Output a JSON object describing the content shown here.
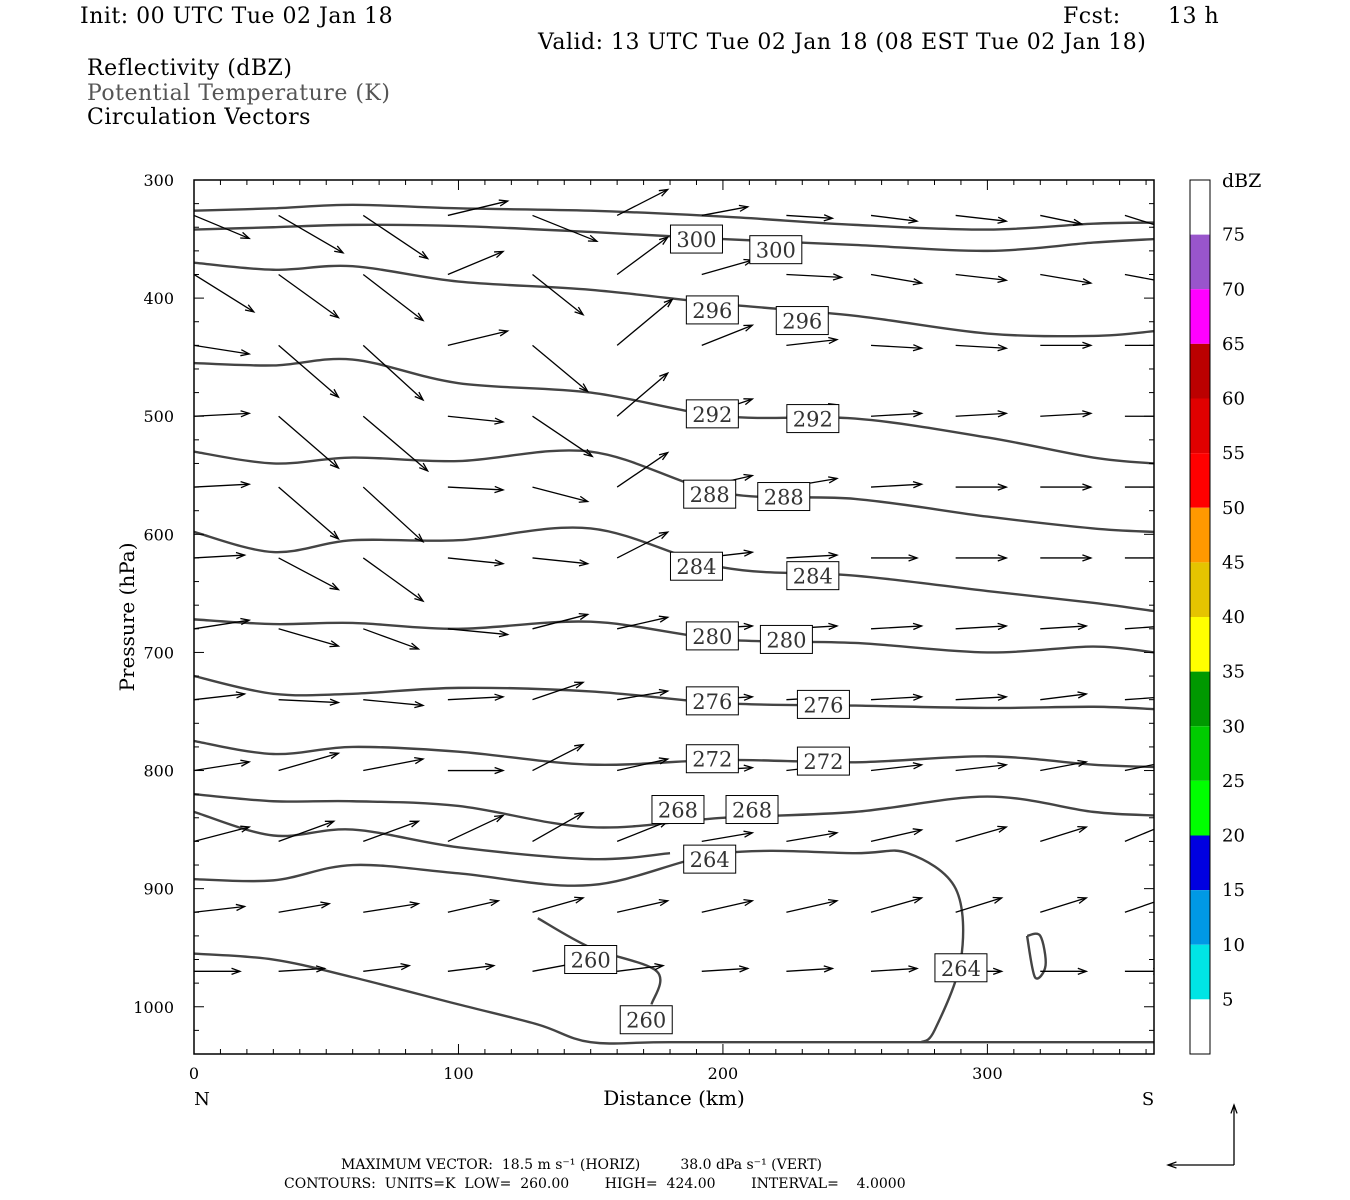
{
  "header": {
    "init": "Init: 00 UTC Tue 02 Jan 18",
    "fcst_label": "Fcst:",
    "fcst_value": "13 h",
    "valid": "Valid: 13 UTC Tue 02 Jan 18 (08 EST Tue 02 Jan 18)",
    "field1": "Reflectivity (dBZ)",
    "field2": "Potential Temperature (K)",
    "field3": "Circulation Vectors"
  },
  "colors": {
    "field2_text": "#555555",
    "contour": "#444444",
    "vector": "#000000",
    "colorbar": [
      "#ffffff",
      "#00e5e5",
      "#0099e5",
      "#0000e0",
      "#00ff00",
      "#00cc00",
      "#009900",
      "#ffff00",
      "#e5c400",
      "#ff9900",
      "#ff0000",
      "#e00000",
      "#bb0000",
      "#ff00ff",
      "#9955cc",
      "#ffffff"
    ]
  },
  "footer": {
    "line1": "MAXIMUM VECTOR:  18.5 m s⁻¹ (HORIZ)         38.0 dPa s⁻¹ (VERT)",
    "line2": "CONTOURS:  UNITS=K  LOW=  260.00        HIGH=  424.00        INTERVAL=    4.0000"
  },
  "chart_data": {
    "type": "contour",
    "xlabel": "Distance (km)",
    "ylabel": "Pressure (hPa)",
    "x_left_label": "N",
    "x_right_label": "S",
    "xlim": [
      0,
      363
    ],
    "ylim": [
      300,
      1040
    ],
    "xticks": [
      0,
      100,
      200,
      300
    ],
    "yticks": [
      300,
      400,
      500,
      600,
      700,
      800,
      900,
      1000
    ],
    "colorbar": {
      "title": "dBZ",
      "levels": [
        5,
        10,
        15,
        20,
        25,
        30,
        35,
        40,
        45,
        50,
        55,
        60,
        65,
        70,
        75
      ]
    },
    "contour_lines": [
      {
        "value": 300,
        "points": [
          [
            0,
            326
          ],
          [
            30,
            324
          ],
          [
            60,
            321
          ],
          [
            100,
            324
          ],
          [
            150,
            326
          ],
          [
            200,
            331
          ],
          [
            250,
            338
          ],
          [
            300,
            342
          ],
          [
            340,
            337
          ],
          [
            363,
            336
          ]
        ],
        "labels": [
          [
            190,
            350
          ],
          [
            220,
            359
          ]
        ]
      },
      {
        "value": 300,
        "points": [
          [
            0,
            342
          ],
          [
            30,
            340
          ],
          [
            60,
            338
          ],
          [
            100,
            339
          ],
          [
            150,
            344
          ],
          [
            200,
            350
          ],
          [
            250,
            355
          ],
          [
            300,
            360
          ],
          [
            340,
            353
          ],
          [
            363,
            350
          ]
        ],
        "labels": []
      },
      {
        "value": 296,
        "points": [
          [
            0,
            370
          ],
          [
            30,
            376
          ],
          [
            60,
            373
          ],
          [
            100,
            386
          ],
          [
            150,
            393
          ],
          [
            200,
            405
          ],
          [
            250,
            415
          ],
          [
            300,
            430
          ],
          [
            340,
            432
          ],
          [
            363,
            428
          ]
        ],
        "labels": [
          [
            196,
            410
          ],
          [
            230,
            419
          ]
        ]
      },
      {
        "value": 292,
        "points": [
          [
            0,
            455
          ],
          [
            30,
            457
          ],
          [
            60,
            452
          ],
          [
            100,
            472
          ],
          [
            150,
            480
          ],
          [
            200,
            500
          ],
          [
            250,
            502
          ],
          [
            300,
            518
          ],
          [
            340,
            535
          ],
          [
            363,
            540
          ]
        ],
        "labels": [
          [
            196,
            498
          ],
          [
            234,
            502
          ]
        ]
      },
      {
        "value": 288,
        "points": [
          [
            0,
            530
          ],
          [
            30,
            540
          ],
          [
            60,
            535
          ],
          [
            100,
            538
          ],
          [
            150,
            530
          ],
          [
            200,
            565
          ],
          [
            250,
            570
          ],
          [
            300,
            585
          ],
          [
            340,
            595
          ],
          [
            363,
            598
          ]
        ],
        "labels": [
          [
            195,
            566
          ],
          [
            223,
            568
          ]
        ]
      },
      {
        "value": 284,
        "points": [
          [
            0,
            598
          ],
          [
            30,
            615
          ],
          [
            60,
            605
          ],
          [
            100,
            605
          ],
          [
            150,
            595
          ],
          [
            200,
            628
          ],
          [
            250,
            635
          ],
          [
            300,
            648
          ],
          [
            340,
            658
          ],
          [
            363,
            665
          ]
        ],
        "labels": [
          [
            190,
            627
          ],
          [
            234,
            635
          ]
        ]
      },
      {
        "value": 280,
        "points": [
          [
            0,
            672
          ],
          [
            30,
            676
          ],
          [
            60,
            675
          ],
          [
            100,
            680
          ],
          [
            150,
            674
          ],
          [
            200,
            689
          ],
          [
            250,
            692
          ],
          [
            300,
            700
          ],
          [
            340,
            695
          ],
          [
            363,
            700
          ]
        ],
        "labels": [
          [
            196,
            686
          ],
          [
            224,
            689
          ]
        ]
      },
      {
        "value": 276,
        "points": [
          [
            0,
            720
          ],
          [
            30,
            735
          ],
          [
            60,
            735
          ],
          [
            100,
            730
          ],
          [
            150,
            733
          ],
          [
            200,
            743
          ],
          [
            250,
            745
          ],
          [
            300,
            747
          ],
          [
            340,
            746
          ],
          [
            363,
            748
          ]
        ],
        "labels": [
          [
            196,
            741
          ],
          [
            238,
            744
          ]
        ]
      },
      {
        "value": 272,
        "points": [
          [
            0,
            775
          ],
          [
            30,
            786
          ],
          [
            60,
            780
          ],
          [
            100,
            784
          ],
          [
            150,
            795
          ],
          [
            200,
            791
          ],
          [
            250,
            793
          ],
          [
            300,
            788
          ],
          [
            340,
            795
          ],
          [
            363,
            797
          ]
        ],
        "labels": [
          [
            196,
            790
          ],
          [
            238,
            792
          ]
        ]
      },
      {
        "value": 268,
        "points": [
          [
            0,
            820
          ],
          [
            30,
            826
          ],
          [
            60,
            826
          ],
          [
            100,
            830
          ],
          [
            150,
            848
          ],
          [
            200,
            840
          ],
          [
            250,
            835
          ],
          [
            300,
            822
          ],
          [
            340,
            835
          ],
          [
            363,
            838
          ]
        ],
        "labels": [
          [
            183,
            833
          ],
          [
            211,
            833
          ]
        ]
      },
      {
        "value": 264,
        "points": [
          [
            0,
            892
          ],
          [
            30,
            893
          ],
          [
            60,
            880
          ],
          [
            100,
            887
          ],
          [
            150,
            897
          ],
          [
            200,
            870
          ],
          [
            250,
            870
          ],
          [
            270,
            870
          ],
          [
            288,
            900
          ],
          [
            290,
            960
          ],
          [
            280,
            1020
          ],
          [
            275,
            1030
          ]
        ],
        "labels": [
          [
            195,
            875
          ],
          [
            290,
            967
          ]
        ]
      },
      {
        "value": 264,
        "points": [
          [
            315,
            940
          ],
          [
            318,
            975
          ],
          [
            322,
            965
          ],
          [
            320,
            940
          ],
          [
            315,
            940
          ]
        ],
        "labels": []
      },
      {
        "value": 260,
        "points": [
          [
            0,
            955
          ],
          [
            30,
            960
          ],
          [
            60,
            975
          ],
          [
            100,
            998
          ],
          [
            130,
            1015
          ],
          [
            150,
            1030
          ],
          [
            180,
            1030
          ],
          [
            250,
            1030
          ],
          [
            363,
            1030
          ]
        ],
        "labels": [
          [
            150,
            960
          ],
          [
            171,
            1011
          ]
        ]
      },
      {
        "value": 260,
        "points": [
          [
            130,
            925
          ],
          [
            150,
            950
          ],
          [
            175,
            970
          ],
          [
            173,
            998
          ]
        ],
        "labels": []
      },
      {
        "value": 264,
        "points": [
          [
            0,
            835
          ],
          [
            30,
            855
          ],
          [
            60,
            850
          ],
          [
            100,
            865
          ],
          [
            150,
            875
          ],
          [
            180,
            870
          ]
        ],
        "labels": []
      }
    ],
    "vectors": {
      "x": [
        0,
        32,
        64,
        96,
        128,
        160,
        192,
        224,
        256,
        288,
        320,
        352
      ],
      "p": [
        330,
        380,
        440,
        500,
        560,
        620,
        680,
        740,
        800,
        860,
        920,
        970
      ],
      "u": [
        [
          1.2,
          1.4,
          1.4,
          1.3,
          1.4,
          1.1,
          1.0,
          1.0,
          1.0,
          1.1,
          0.9,
          0.8
        ],
        [
          1.3,
          1.3,
          1.3,
          1.2,
          1.1,
          1.1,
          1.1,
          1.2,
          1.1,
          1.1,
          1.1,
          1.0
        ],
        [
          1.2,
          1.3,
          1.3,
          1.3,
          1.2,
          1.2,
          1.1,
          1.1,
          1.1,
          1.1,
          1.1,
          1.0
        ],
        [
          1.2,
          1.3,
          1.4,
          1.2,
          1.3,
          1.1,
          1.1,
          1.1,
          1.1,
          1.1,
          1.1,
          1.0
        ],
        [
          1.2,
          1.3,
          1.3,
          1.2,
          1.2,
          1.1,
          1.1,
          1.1,
          1.1,
          1.1,
          1.1,
          1.0
        ],
        [
          1.1,
          1.3,
          1.3,
          1.2,
          1.2,
          1.1,
          1.1,
          1.1,
          1.0,
          1.1,
          1.1,
          0.9
        ],
        [
          1.2,
          1.3,
          1.2,
          1.3,
          1.2,
          1.1,
          1.1,
          1.1,
          1.1,
          1.1,
          1.0,
          0.9
        ],
        [
          1.1,
          1.3,
          1.3,
          1.2,
          1.1,
          1.1,
          1.1,
          1.1,
          1.1,
          1.1,
          1.0,
          0.9
        ],
        [
          1.2,
          1.3,
          1.3,
          1.2,
          1.1,
          1.1,
          1.1,
          1.1,
          1.1,
          1.1,
          1.0,
          0.9
        ],
        [
          1.2,
          1.2,
          1.2,
          1.2,
          1.1,
          1.1,
          1.1,
          1.1,
          1.1,
          1.1,
          1.0,
          0.9
        ],
        [
          1.1,
          1.1,
          1.2,
          1.1,
          1.1,
          1.1,
          1.1,
          1.1,
          1.1,
          1.0,
          1.0,
          0.9
        ],
        [
          1.0,
          1.0,
          1.0,
          1.0,
          1.0,
          1.0,
          1.0,
          1.0,
          1.0,
          1.0,
          1.0,
          0.8
        ]
      ],
      "w": [
        [
          -0.8,
          -1.3,
          -1.5,
          0.5,
          -0.9,
          0.9,
          0.3,
          -0.1,
          -0.2,
          -0.2,
          -0.3,
          -0.4
        ],
        [
          -1.3,
          -1.5,
          -1.6,
          0.8,
          -1.4,
          1.3,
          0.5,
          -0.1,
          -0.3,
          -0.2,
          -0.3,
          -0.3
        ],
        [
          -0.3,
          -1.8,
          -1.9,
          0.5,
          -1.6,
          1.6,
          0.7,
          0.2,
          -0.1,
          -0.1,
          0.0,
          0.0
        ],
        [
          0.1,
          -1.8,
          -1.9,
          -0.2,
          -1.4,
          1.5,
          0.6,
          0.4,
          0.1,
          0.1,
          0.1,
          0.0
        ],
        [
          0.1,
          -1.8,
          -1.9,
          -0.1,
          -0.5,
          1.2,
          0.4,
          0.3,
          0.1,
          0.0,
          0.0,
          0.0
        ],
        [
          0.1,
          -1.1,
          -1.5,
          -0.2,
          -0.2,
          0.9,
          0.2,
          0.1,
          0.0,
          0.0,
          0.0,
          0.0
        ],
        [
          0.3,
          -0.6,
          -0.7,
          -0.2,
          0.5,
          0.4,
          0.1,
          0.1,
          0.1,
          0.1,
          0.1,
          0.1
        ],
        [
          0.2,
          -0.1,
          -0.2,
          0.1,
          0.6,
          0.3,
          0.1,
          0.1,
          0.1,
          0.1,
          0.2,
          0.1
        ],
        [
          0.3,
          0.6,
          0.4,
          0.0,
          0.9,
          0.4,
          0.1,
          0.2,
          0.2,
          0.2,
          0.3,
          0.3
        ],
        [
          0.5,
          0.7,
          0.7,
          0.9,
          1.0,
          0.7,
          0.3,
          0.3,
          0.4,
          0.5,
          0.5,
          0.6
        ],
        [
          0.2,
          0.3,
          0.3,
          0.4,
          0.5,
          0.4,
          0.4,
          0.4,
          0.5,
          0.5,
          0.5,
          0.5
        ],
        [
          0.0,
          0.1,
          0.2,
          0.2,
          0.3,
          0.2,
          0.1,
          0.1,
          0.1,
          0.0,
          0.0,
          0.0
        ]
      ]
    },
    "reference_vector": {
      "u": 1,
      "w": 1
    }
  }
}
